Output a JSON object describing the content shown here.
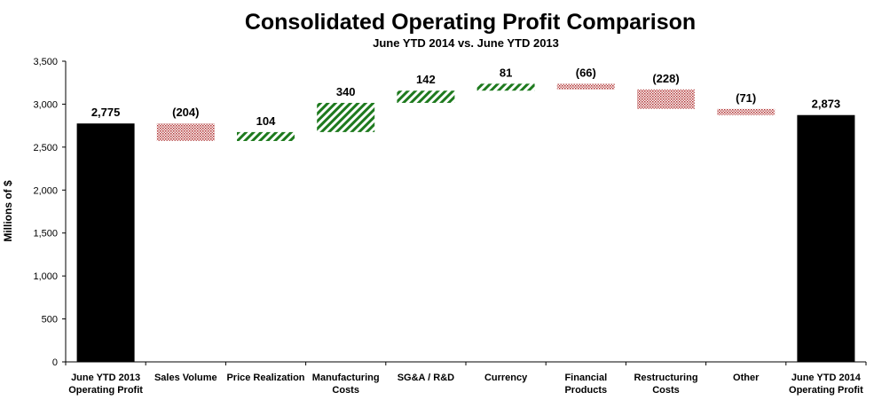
{
  "chart_data": {
    "type": "bar",
    "subtype": "waterfall",
    "title": "Consolidated Operating Profit Comparison",
    "subtitle": "June YTD 2014 vs. June YTD 2013",
    "xlabel": "",
    "ylabel": "Millions of $",
    "ylim": [
      0,
      3500
    ],
    "yticks": [
      0,
      500,
      1000,
      1500,
      2000,
      2500,
      3000,
      3500
    ],
    "ytick_labels": [
      "0",
      "500",
      "1,000",
      "1,500",
      "2,000",
      "2,500",
      "3,000",
      "3,500"
    ],
    "grid": false,
    "legend": "none",
    "categories": [
      [
        "June YTD 2013",
        "Operating Profit"
      ],
      [
        "Sales Volume"
      ],
      [
        "Price Realization"
      ],
      [
        "Manufacturing",
        "Costs"
      ],
      [
        "SG&A / R&D"
      ],
      [
        "Currency"
      ],
      [
        "Financial",
        "Products"
      ],
      [
        "Restructuring",
        "Costs"
      ],
      [
        "Other"
      ],
      [
        "June YTD 2014",
        "Operating Profit"
      ]
    ],
    "values": [
      2775,
      -204,
      104,
      340,
      142,
      81,
      -66,
      -228,
      -71,
      2873
    ],
    "kinds": [
      "total",
      "delta",
      "delta",
      "delta",
      "delta",
      "delta",
      "delta",
      "delta",
      "delta",
      "total"
    ],
    "data_labels": [
      "2,775",
      "(204)",
      "104",
      "340",
      "142",
      "81",
      "(66)",
      "(228)",
      "(71)",
      "2,873"
    ],
    "colors": {
      "total": "#000000",
      "increase": "#1e7a1e",
      "decrease": "#b03030"
    }
  }
}
